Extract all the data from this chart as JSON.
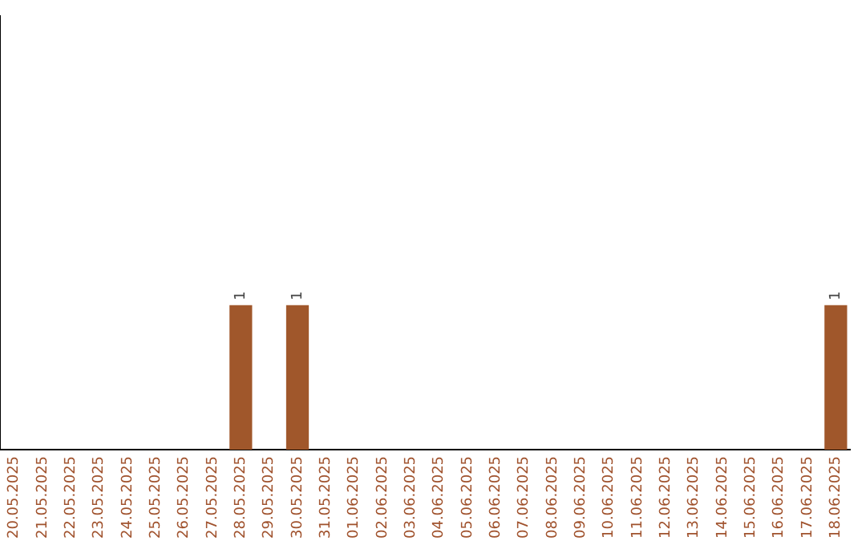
{
  "chart_data": {
    "type": "bar",
    "categories": [
      "20.05.2025",
      "21.05.2025",
      "22.05.2025",
      "23.05.2025",
      "24.05.2025",
      "25.05.2025",
      "26.05.2025",
      "27.05.2025",
      "28.05.2025",
      "29.05.2025",
      "30.05.2025",
      "31.05.2025",
      "01.06.2025",
      "02.06.2025",
      "03.06.2025",
      "04.06.2025",
      "05.06.2025",
      "06.06.2025",
      "07.06.2025",
      "08.06.2025",
      "09.06.2025",
      "10.06.2025",
      "11.06.2025",
      "12.06.2025",
      "13.06.2025",
      "14.06.2025",
      "15.06.2025",
      "16.06.2025",
      "17.06.2025",
      "18.06.2025"
    ],
    "values": [
      0,
      0,
      0,
      0,
      0,
      0,
      0,
      0,
      1,
      0,
      1,
      0,
      0,
      0,
      0,
      0,
      0,
      0,
      0,
      0,
      0,
      0,
      0,
      0,
      0,
      0,
      0,
      0,
      0,
      1
    ],
    "value_labels": [
      null,
      null,
      null,
      null,
      null,
      null,
      null,
      null,
      "1",
      null,
      "1",
      null,
      null,
      null,
      null,
      null,
      null,
      null,
      null,
      null,
      null,
      null,
      null,
      null,
      null,
      null,
      null,
      null,
      null,
      "1"
    ],
    "color": "#a0572b",
    "ylim": [
      0,
      3
    ],
    "tick_labels": "x",
    "grid": false,
    "legend": false
  }
}
